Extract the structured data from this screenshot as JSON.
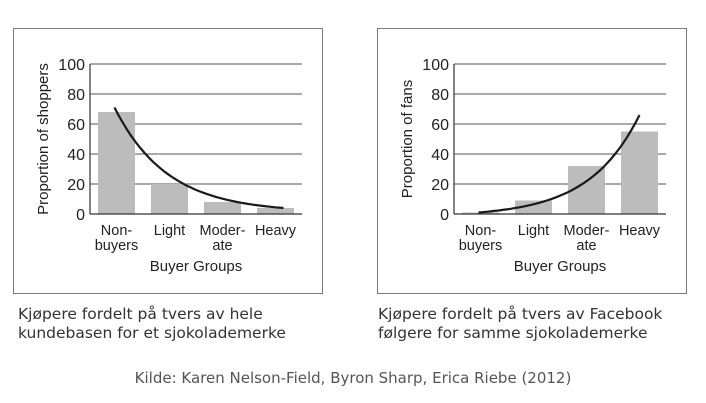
{
  "chart_data": [
    {
      "type": "bar",
      "xlabel": "Buyer Groups",
      "ylabel": "Proportion of shoppers",
      "ylim": [
        0,
        100
      ],
      "yticks": [
        "0",
        "20",
        "40",
        "60",
        "80",
        "100"
      ],
      "categories": [
        [
          "Non-",
          "buyers"
        ],
        [
          "Light"
        ],
        [
          "Moder-",
          "ate"
        ],
        [
          "Heavy"
        ]
      ],
      "values": [
        68,
        20,
        8,
        4
      ],
      "trend_curve": {
        "shape": "decreasing",
        "start": 71,
        "end": 4
      },
      "grid": true,
      "bar_color": "#bcbcbc"
    },
    {
      "type": "bar",
      "xlabel": "Buyer Groups",
      "ylabel": "Proportion of fans",
      "ylim": [
        0,
        100
      ],
      "yticks": [
        "0",
        "20",
        "40",
        "60",
        "80",
        "100"
      ],
      "categories": [
        [
          "Non-",
          "buyers"
        ],
        [
          "Light"
        ],
        [
          "Moder-",
          "ate"
        ],
        [
          "Heavy"
        ]
      ],
      "values": [
        1,
        9,
        32,
        55
      ],
      "trend_curve": {
        "shape": "increasing",
        "start": 1,
        "end": 66
      },
      "grid": true,
      "bar_color": "#bcbcbc"
    }
  ],
  "captions": {
    "left": [
      "Kjøpere fordelt på tvers av hele",
      "kundebasen for et sjokolademerke"
    ],
    "right": [
      "Kjøpere fordelt på tvers av Facebook",
      "følgere for samme sjokolademerke"
    ]
  },
  "source": "Kilde: Karen Nelson-Field, Byron Sharp, Erica Riebe (2012)"
}
